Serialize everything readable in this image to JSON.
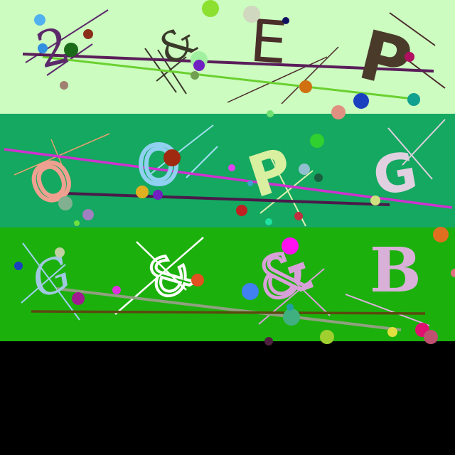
{
  "captcha": {
    "rows": [
      {
        "chars": [
          "2",
          "&",
          "E",
          "P"
        ],
        "bg_color": "#ccfcc0"
      },
      {
        "chars": [
          "O",
          "O",
          "P",
          "G"
        ],
        "bg_color": "#14a860"
      },
      {
        "chars": [
          "G",
          "&",
          "&",
          "B"
        ],
        "bg_color": "#1cb00c"
      }
    ],
    "footer_color": "#000000"
  }
}
